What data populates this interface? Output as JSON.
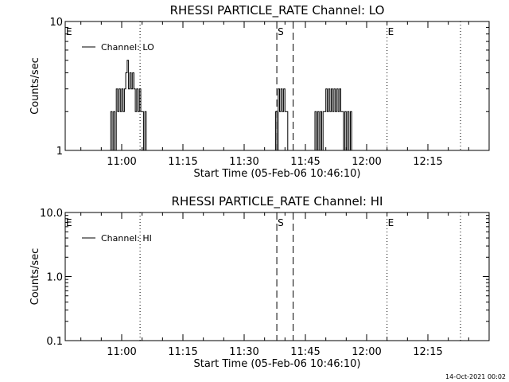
{
  "footer": {
    "timestamp": "14-Oct-2021 00:02"
  },
  "colors": {
    "background": "#ffffff",
    "ink": "#000000"
  },
  "chart_data": [
    {
      "type": "line",
      "title": "RHESSI PARTICLE_RATE Channel: LO",
      "xlabel": "Start Time (05-Feb-06 10:46:10)",
      "ylabel": "Counts/sec",
      "yscale": "log",
      "ylim": [
        1,
        10
      ],
      "ytick_labels": [
        "1",
        "10"
      ],
      "xlim": [
        "10:46:10",
        "12:30:00"
      ],
      "xtick_labels": [
        "11:00",
        "11:15",
        "11:30",
        "11:45",
        "12:00",
        "12:15"
      ],
      "legend": {
        "entries": [
          "Channel: LO"
        ],
        "placement": "top-left"
      },
      "markers": [
        {
          "label": "E",
          "time": "10:46:10",
          "style": "edge"
        },
        {
          "label": "",
          "time": "11:04:30",
          "style": "dotted"
        },
        {
          "label": "S",
          "time": "11:38:00",
          "style": "dashed"
        },
        {
          "label": "",
          "time": "11:42:00",
          "style": "dashed"
        },
        {
          "label": "E",
          "time": "12:05:00",
          "style": "dotted"
        },
        {
          "label": "",
          "time": "12:23:00",
          "style": "dotted"
        }
      ],
      "series": [
        {
          "name": "Channel: LO",
          "segments": [
            {
              "x": [
                "10:57:00",
                "10:57:20",
                "10:57:40",
                "10:58:00",
                "10:58:20",
                "10:58:40",
                "10:59:00",
                "10:59:20",
                "10:59:40",
                "11:00:00",
                "11:00:20",
                "11:00:40",
                "11:01:00",
                "11:01:20",
                "11:01:40",
                "11:02:00",
                "11:02:20",
                "11:02:40",
                "11:03:00",
                "11:03:20",
                "11:03:40",
                "11:04:00",
                "11:04:20",
                "11:04:40",
                "11:05:00",
                "11:05:20",
                "11:05:40",
                "11:06:00",
                "11:06:20"
              ],
              "y": [
                1,
                2,
                1,
                2,
                1,
                3,
                2,
                3,
                2,
                3,
                2,
                3,
                4,
                5,
                3,
                4,
                3,
                4,
                3,
                2,
                3,
                2,
                3,
                2,
                2,
                1,
                2,
                1,
                1
              ]
            },
            {
              "x": [
                "11:37:20",
                "11:37:40",
                "11:38:00",
                "11:38:20",
                "11:38:40",
                "11:39:00",
                "11:39:20",
                "11:39:40",
                "11:40:00",
                "11:40:20",
                "11:40:40",
                "11:41:00"
              ],
              "y": [
                1,
                2,
                1,
                3,
                2,
                3,
                2,
                3,
                2,
                2,
                1,
                1
              ]
            },
            {
              "x": [
                "11:47:00",
                "11:47:20",
                "11:47:40",
                "11:48:00",
                "11:48:20",
                "11:48:40",
                "11:49:00",
                "11:49:20",
                "11:49:40",
                "11:50:00",
                "11:50:20",
                "11:50:40",
                "11:51:00",
                "11:51:20",
                "11:51:40",
                "11:52:00",
                "11:52:20",
                "11:52:40",
                "11:53:00",
                "11:53:20",
                "11:53:40",
                "11:54:00",
                "11:54:20",
                "11:54:40",
                "11:55:00",
                "11:55:20",
                "11:55:40",
                "11:56:00",
                "11:56:20",
                "11:56:40"
              ],
              "y": [
                1,
                2,
                1,
                2,
                1,
                2,
                1,
                2,
                2,
                3,
                2,
                3,
                2,
                3,
                2,
                3,
                2,
                3,
                2,
                3,
                2,
                2,
                1,
                2,
                1,
                2,
                1,
                2,
                1,
                1
              ]
            }
          ]
        }
      ]
    },
    {
      "type": "line",
      "title": "RHESSI PARTICLE_RATE Channel: HI",
      "xlabel": "Start Time (05-Feb-06 10:46:10)",
      "ylabel": "Counts/sec",
      "yscale": "log",
      "ylim": [
        0.1,
        10
      ],
      "ytick_labels": [
        "0.1",
        "1.0",
        "10.0"
      ],
      "xlim": [
        "10:46:10",
        "12:30:00"
      ],
      "xtick_labels": [
        "11:00",
        "11:15",
        "11:30",
        "11:45",
        "12:00",
        "12:15"
      ],
      "legend": {
        "entries": [
          "Channel: HI"
        ],
        "placement": "top-left"
      },
      "markers": [
        {
          "label": "E",
          "time": "10:46:10",
          "style": "edge"
        },
        {
          "label": "",
          "time": "11:04:30",
          "style": "dotted"
        },
        {
          "label": "S",
          "time": "11:38:00",
          "style": "dashed"
        },
        {
          "label": "",
          "time": "11:42:00",
          "style": "dashed"
        },
        {
          "label": "E",
          "time": "12:05:00",
          "style": "dotted"
        },
        {
          "label": "",
          "time": "12:23:00",
          "style": "dotted"
        }
      ],
      "series": [
        {
          "name": "Channel: HI",
          "segments": []
        }
      ]
    }
  ]
}
